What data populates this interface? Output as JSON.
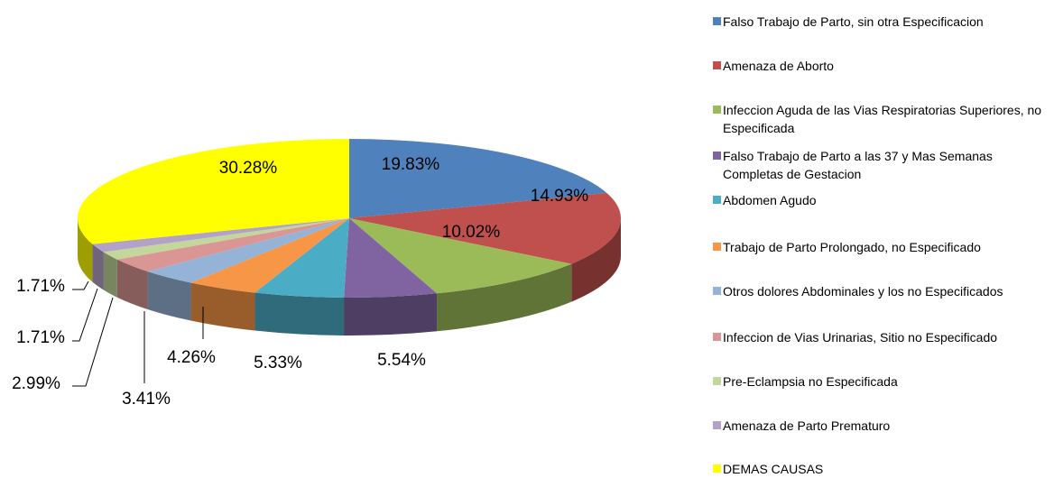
{
  "chart_data": {
    "type": "pie3d",
    "categories": [
      "Falso Trabajo de Parto, sin otra Especificacion",
      "Amenaza de Aborto",
      "Infeccion Aguda de las Vias Respiratorias Superiores, no Especificada",
      "Falso Trabajo de Parto a las 37 y Mas Semanas Completas de Gestacion",
      "Abdomen Agudo",
      "Trabajo de Parto Prolongado, no Especificado",
      "Otros dolores Abdominales y los no Especificados",
      "Infeccion de Vias Urinarias, Sitio no Especificado",
      "Pre-Eclampsia no Especificada",
      "Amenaza de Parto Prematuro",
      "DEMAS CAUSAS"
    ],
    "values": [
      19.83,
      14.93,
      10.02,
      5.54,
      5.33,
      4.26,
      3.41,
      2.99,
      1.71,
      1.71,
      30.28
    ],
    "value_labels": [
      "19.83%",
      "14.93%",
      "10.02%",
      "5.54%",
      "5.33%",
      "4.26%",
      "3.41%",
      "2.99%",
      "1.71%",
      "1.71%",
      "30.28%"
    ],
    "colors": [
      "#4f81bd",
      "#c0504d",
      "#9bbb59",
      "#8064a2",
      "#4bacc6",
      "#f79646",
      "#95b3d7",
      "#d99694",
      "#c3d69b",
      "#b3a2c7",
      "#ffff00"
    ],
    "legend": "right"
  }
}
